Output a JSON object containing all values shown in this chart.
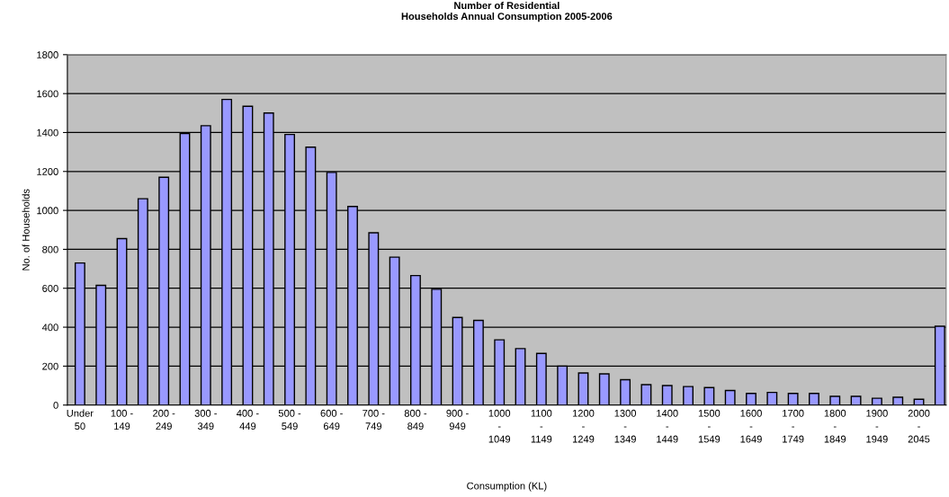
{
  "chart_data": {
    "type": "bar",
    "title": "Number of Residential\nHouseholds Annual Consumption 2005-2006",
    "xlabel": "Consumption (KL)",
    "ylabel": "No. of Households",
    "categories": [
      "Under\n50",
      null,
      "100 -\n149",
      null,
      "200 -\n249",
      null,
      "300 -\n349",
      null,
      "400 -\n449",
      null,
      "500 -\n549",
      null,
      "600 -\n649",
      null,
      "700 -\n749",
      null,
      "800 -\n849",
      null,
      "900 -\n949",
      null,
      "1000\n-\n1049",
      null,
      "1100\n-\n1149",
      null,
      "1200\n-\n1249",
      null,
      "1300\n-\n1349",
      null,
      "1400\n-\n1449",
      null,
      "1500\n-\n1549",
      null,
      "1600\n-\n1649",
      null,
      "1700\n-\n1749",
      null,
      "1800\n-\n1849",
      null,
      "1900\n-\n1949",
      null,
      "2000\n-\n2045",
      null
    ],
    "values": [
      730,
      615,
      855,
      1060,
      1170,
      1395,
      1435,
      1570,
      1535,
      1500,
      1390,
      1325,
      1195,
      1020,
      885,
      760,
      665,
      595,
      450,
      435,
      335,
      290,
      265,
      200,
      165,
      160,
      130,
      105,
      100,
      95,
      90,
      75,
      60,
      65,
      60,
      60,
      45,
      45,
      35,
      40,
      30,
      405
    ],
    "color": "#9999ff",
    "ylim": [
      0,
      1800
    ],
    "yticks": [
      0,
      200,
      400,
      600,
      800,
      1000,
      1200,
      1400,
      1600,
      1800
    ],
    "grid": "y",
    "legend": false
  }
}
